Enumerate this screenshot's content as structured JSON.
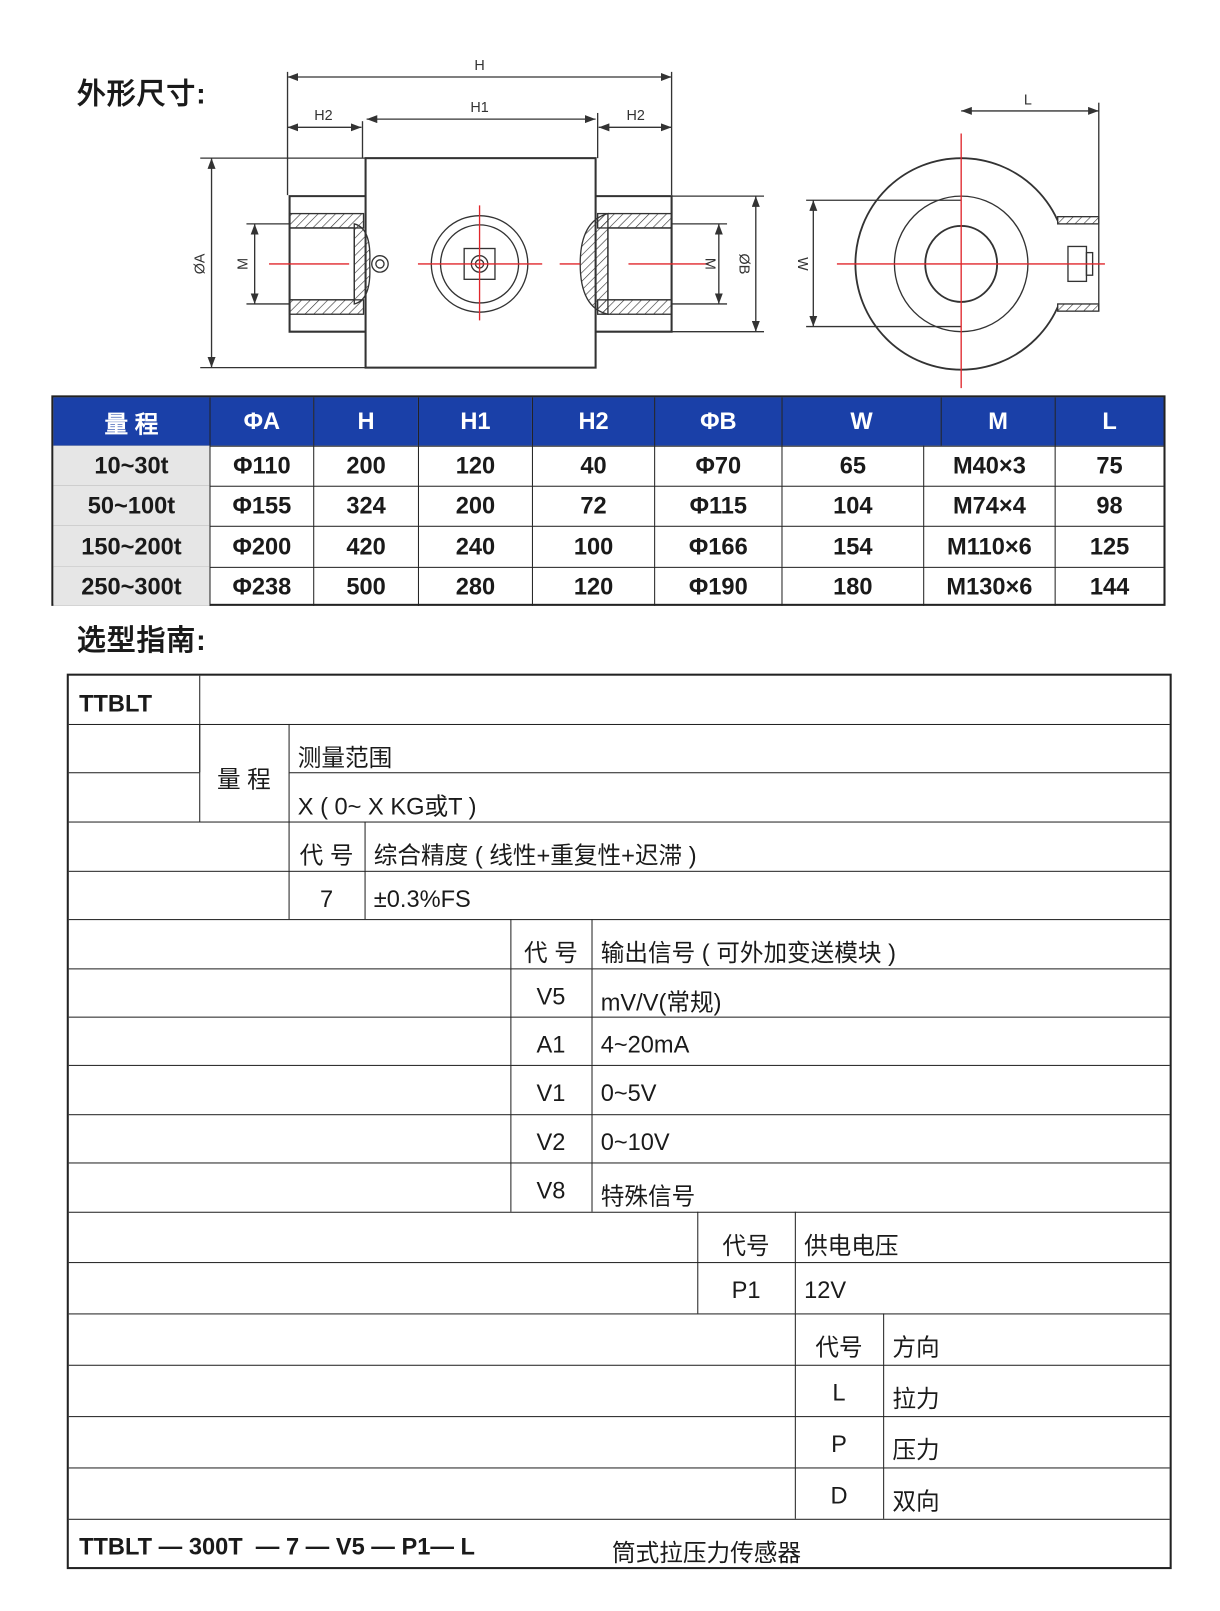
{
  "section_dimensions": {
    "title": "外形尺寸:"
  },
  "drawing": {
    "labels": {
      "H": "H",
      "H1": "H1",
      "H2": "H2",
      "phiA": "ØA",
      "phiB": "ØB",
      "M": "M",
      "W": "W",
      "L": "L"
    },
    "centerline_color": "#e0262b"
  },
  "spec_table": {
    "header_color": "#1a40a8",
    "headers": [
      "量 程",
      "ΦA",
      "H",
      "H1",
      "H2",
      "ΦB",
      "W",
      "M",
      "L"
    ],
    "rows": [
      [
        "10~30t",
        "Φ110",
        "200",
        "120",
        "40",
        "Φ70",
        "65",
        "M40×3",
        "75"
      ],
      [
        "50~100t",
        "Φ155",
        "324",
        "200",
        "72",
        "Φ115",
        "104",
        "M74×4",
        "98"
      ],
      [
        "150~200t",
        "Φ200",
        "420",
        "240",
        "100",
        "Φ166",
        "154",
        "M110×6",
        "125"
      ],
      [
        "250~300t",
        "Φ238",
        "500",
        "280",
        "120",
        "Φ190",
        "180",
        "M130×6",
        "144"
      ]
    ]
  },
  "section_selection": {
    "title": "选型指南:"
  },
  "selection_table": {
    "model": "TTBLT",
    "range": {
      "label": "量 程",
      "heading": "测量范围",
      "value": "X ( 0~ X KG或T )"
    },
    "accuracy": {
      "code_label": "代 号",
      "heading": "综合精度 ( 线性+重复性+迟滞 )",
      "options": [
        {
          "code": "7",
          "value": "±0.3%FS"
        }
      ]
    },
    "output": {
      "code_label": "代 号",
      "heading": "输出信号 ( 可外加变送模块 )",
      "options": [
        {
          "code": "V5",
          "value": "mV/V(常规)"
        },
        {
          "code": "A1",
          "value": "4~20mA"
        },
        {
          "code": "V1",
          "value": "0~5V"
        },
        {
          "code": "V2",
          "value": "0~10V"
        },
        {
          "code": "V8",
          "value": "特殊信号"
        }
      ]
    },
    "supply": {
      "code_label": "代号",
      "heading": "供电电压",
      "options": [
        {
          "code": "P1",
          "value": "12V"
        }
      ]
    },
    "direction": {
      "code_label": "代号",
      "heading": "方向",
      "options": [
        {
          "code": "L",
          "value": "拉力"
        },
        {
          "code": "P",
          "value": "压力"
        },
        {
          "code": "D",
          "value": "双向"
        }
      ]
    },
    "example_code": "TTBLT — 300T  — 7 — V5 — P1— L",
    "example_name": "筒式拉压力传感器"
  }
}
